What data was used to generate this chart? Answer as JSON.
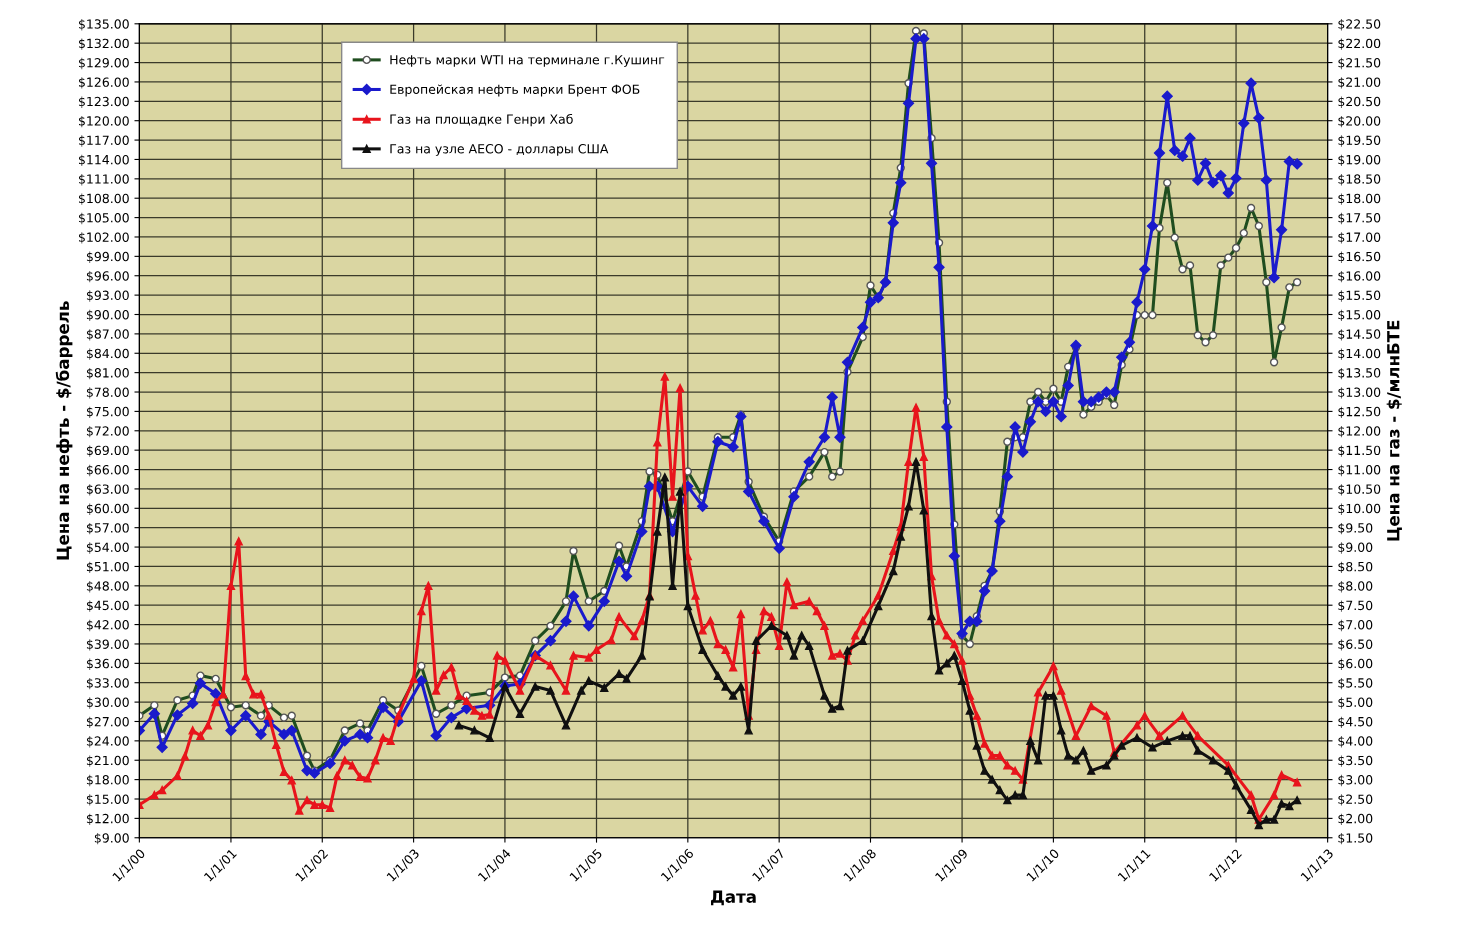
{
  "chart_data": {
    "type": "line",
    "xlabel": "Дата",
    "ylabel": "Цена на нефть - $/баррель",
    "y2label": "Цена на газ - $/млнБТЕ",
    "grid": true,
    "legend": "top left",
    "line_style": "solid",
    "xlim": [
      "2000-01-01",
      "2013-01-01"
    ],
    "xticks": [
      {
        "value": "2000-01-01",
        "label": "1/1/00"
      },
      {
        "value": "2001-01-01",
        "label": "1/1/01"
      },
      {
        "value": "2002-01-01",
        "label": "1/1/02"
      },
      {
        "value": "2003-01-01",
        "label": "1/1/03"
      },
      {
        "value": "2004-01-01",
        "label": "1/1/04"
      },
      {
        "value": "2005-01-01",
        "label": "1/1/05"
      },
      {
        "value": "2006-01-01",
        "label": "1/1/06"
      },
      {
        "value": "2007-01-01",
        "label": "1/1/07"
      },
      {
        "value": "2008-01-01",
        "label": "1/1/08"
      },
      {
        "value": "2009-01-01",
        "label": "1/1/09"
      },
      {
        "value": "2010-01-01",
        "label": "1/1/10"
      },
      {
        "value": "2011-01-01",
        "label": "1/1/11"
      },
      {
        "value": "2012-01-01",
        "label": "1/1/12"
      },
      {
        "value": "2013-01-01",
        "label": "1/1/13"
      }
    ],
    "ylim": [
      9,
      135
    ],
    "yticks": [
      {
        "value": 9,
        "label": "$9.00"
      },
      {
        "value": 12,
        "label": "$12.00"
      },
      {
        "value": 15,
        "label": "$15.00"
      },
      {
        "value": 18,
        "label": "$18.00"
      },
      {
        "value": 21,
        "label": "$21.00"
      },
      {
        "value": 24,
        "label": "$24.00"
      },
      {
        "value": 27,
        "label": "$27.00"
      },
      {
        "value": 30,
        "label": "$30.00"
      },
      {
        "value": 33,
        "label": "$33.00"
      },
      {
        "value": 36,
        "label": "$36.00"
      },
      {
        "value": 39,
        "label": "$39.00"
      },
      {
        "value": 42,
        "label": "$42.00"
      },
      {
        "value": 45,
        "label": "$45.00"
      },
      {
        "value": 48,
        "label": "$48.00"
      },
      {
        "value": 51,
        "label": "$51.00"
      },
      {
        "value": 54,
        "label": "$54.00"
      },
      {
        "value": 57,
        "label": "$57.00"
      },
      {
        "value": 60,
        "label": "$60.00"
      },
      {
        "value": 63,
        "label": "$63.00"
      },
      {
        "value": 66,
        "label": "$66.00"
      },
      {
        "value": 69,
        "label": "$69.00"
      },
      {
        "value": 72,
        "label": "$72.00"
      },
      {
        "value": 75,
        "label": "$75.00"
      },
      {
        "value": 78,
        "label": "$78.00"
      },
      {
        "value": 81,
        "label": "$81.00"
      },
      {
        "value": 84,
        "label": "$84.00"
      },
      {
        "value": 87,
        "label": "$87.00"
      },
      {
        "value": 90,
        "label": "$90.00"
      },
      {
        "value": 93,
        "label": "$93.00"
      },
      {
        "value": 96,
        "label": "$96.00"
      },
      {
        "value": 99,
        "label": "$99.00"
      },
      {
        "value": 102,
        "label": "$102.00"
      },
      {
        "value": 105,
        "label": "$105.00"
      },
      {
        "value": 108,
        "label": "$108.00"
      },
      {
        "value": 111,
        "label": "$111.00"
      },
      {
        "value": 114,
        "label": "$114.00"
      },
      {
        "value": 117,
        "label": "$117.00"
      },
      {
        "value": 120,
        "label": "$120.00"
      },
      {
        "value": 123,
        "label": "$123.00"
      },
      {
        "value": 126,
        "label": "$126.00"
      },
      {
        "value": 129,
        "label": "$129.00"
      },
      {
        "value": 132,
        "label": "$132.00"
      },
      {
        "value": 135,
        "label": "$135.00"
      }
    ],
    "y2lim": [
      1.5,
      22.5
    ],
    "y2ticks": [
      {
        "value": 1.5,
        "label": "$1.50"
      },
      {
        "value": 2,
        "label": "$2.00"
      },
      {
        "value": 2.5,
        "label": "$2.50"
      },
      {
        "value": 3,
        "label": "$3.00"
      },
      {
        "value": 3.5,
        "label": "$3.50"
      },
      {
        "value": 4,
        "label": "$4.00"
      },
      {
        "value": 4.5,
        "label": "$4.50"
      },
      {
        "value": 5,
        "label": "$5.00"
      },
      {
        "value": 5.5,
        "label": "$5.50"
      },
      {
        "value": 6,
        "label": "$6.00"
      },
      {
        "value": 6.5,
        "label": "$6.50"
      },
      {
        "value": 7,
        "label": "$7.00"
      },
      {
        "value": 7.5,
        "label": "$7.50"
      },
      {
        "value": 8,
        "label": "$8.00"
      },
      {
        "value": 8.5,
        "label": "$8.50"
      },
      {
        "value": 9,
        "label": "$9.00"
      },
      {
        "value": 9.5,
        "label": "$9.50"
      },
      {
        "value": 10,
        "label": "$10.00"
      },
      {
        "value": 10.5,
        "label": "$10.50"
      },
      {
        "value": 11,
        "label": "$11.00"
      },
      {
        "value": 11.5,
        "label": "$11.50"
      },
      {
        "value": 12,
        "label": "$12.00"
      },
      {
        "value": 12.5,
        "label": "$12.50"
      },
      {
        "value": 13,
        "label": "$13.00"
      },
      {
        "value": 13.5,
        "label": "$13.50"
      },
      {
        "value": 14,
        "label": "$14.00"
      },
      {
        "value": 14.5,
        "label": "$14.50"
      },
      {
        "value": 15,
        "label": "$15.00"
      },
      {
        "value": 15.5,
        "label": "$15.50"
      },
      {
        "value": 16,
        "label": "$16.00"
      },
      {
        "value": 16.5,
        "label": "$16.50"
      },
      {
        "value": 17,
        "label": "$17.00"
      },
      {
        "value": 17.5,
        "label": "$17.50"
      },
      {
        "value": 18,
        "label": "$18.00"
      },
      {
        "value": 18.5,
        "label": "$18.50"
      },
      {
        "value": 19,
        "label": "$19.00"
      },
      {
        "value": 19.5,
        "label": "$19.50"
      },
      {
        "value": 20,
        "label": "$20.00"
      },
      {
        "value": 20.5,
        "label": "$20.50"
      },
      {
        "value": 21,
        "label": "$21.00"
      },
      {
        "value": 21.5,
        "label": "$21.50"
      },
      {
        "value": 22,
        "label": "$22.00"
      },
      {
        "value": 22.5,
        "label": "$22.50"
      }
    ],
    "series": [
      {
        "name": "Нефть марки WTI на терминале г.Кушинг",
        "color": "#1f4d1f",
        "marker": "circle",
        "x": [
          "2000-01",
          "2000-03",
          "2000-04",
          "2000-06",
          "2000-08",
          "2000-09",
          "2000-11",
          "2001-01",
          "2001-03",
          "2001-05",
          "2001-06",
          "2001-08",
          "2001-09",
          "2001-11",
          "2001-12",
          "2002-02",
          "2002-04",
          "2002-06",
          "2002-07",
          "2002-09",
          "2002-11",
          "2003-02",
          "2003-04",
          "2003-06",
          "2003-08",
          "2003-11",
          "2004-01",
          "2004-03",
          "2004-05",
          "2004-07",
          "2004-09",
          "2004-10",
          "2004-12",
          "2005-02",
          "2005-04",
          "2005-05",
          "2005-07",
          "2005-08",
          "2005-09",
          "2005-11",
          "2006-01",
          "2006-03",
          "2006-05",
          "2006-07",
          "2006-08",
          "2006-09",
          "2006-11",
          "2007-01",
          "2007-03",
          "2007-05",
          "2007-07",
          "2007-08",
          "2007-09",
          "2007-10",
          "2007-12",
          "2008-01",
          "2008-02",
          "2008-03",
          "2008-04",
          "2008-05",
          "2008-06",
          "2008-07",
          "2008-08",
          "2008-09",
          "2008-10",
          "2008-11",
          "2008-12",
          "2009-01",
          "2009-02",
          "2009-03",
          "2009-04",
          "2009-05",
          "2009-06",
          "2009-07",
          "2009-08",
          "2009-09",
          "2009-10",
          "2009-11",
          "2009-12",
          "2010-01",
          "2010-02",
          "2010-03",
          "2010-04",
          "2010-05",
          "2010-06",
          "2010-07",
          "2010-08",
          "2010-09",
          "2010-10",
          "2010-11",
          "2010-12",
          "2011-01",
          "2011-02",
          "2011-03",
          "2011-04",
          "2011-05",
          "2011-06",
          "2011-07",
          "2011-08",
          "2011-09",
          "2011-10",
          "2011-11",
          "2011-12",
          "2012-01",
          "2012-02",
          "2012-03",
          "2012-04",
          "2012-05",
          "2012-06",
          "2012-07",
          "2012-08",
          "2012-09"
        ],
        "values": [
          27.9,
          29.5,
          24.8,
          30.3,
          31,
          34.1,
          33.6,
          29.2,
          29.5,
          27.9,
          29.5,
          27.6,
          27.9,
          21.7,
          19.4,
          21,
          25.6,
          26.7,
          25.6,
          30.3,
          28.7,
          35.6,
          28.2,
          29.5,
          31,
          31.5,
          33.8,
          34.1,
          39.5,
          41.8,
          45.6,
          53.4,
          45.6,
          47.2,
          54.2,
          51,
          58,
          65.7,
          65.2,
          58,
          65.7,
          61.8,
          71,
          71,
          74.5,
          64.1,
          58.7,
          54.9,
          62.6,
          64.9,
          68.7,
          64.9,
          65.7,
          81.1,
          86.5,
          94.5,
          92.6,
          95,
          105.7,
          112.7,
          125.8,
          133.9,
          133.5,
          117.3,
          101.1,
          76.5,
          57.5,
          40.3,
          39,
          43.3,
          48,
          50.3,
          59.5,
          70.3,
          71,
          71,
          76.5,
          78,
          76.5,
          78.5,
          76.5,
          81.9,
          84.9,
          74.5,
          75.7,
          76.5,
          77.5,
          76,
          82.2,
          84.6,
          89.9,
          89.9,
          89.9,
          103.4,
          110.4,
          101.9,
          97,
          97.6,
          86.8,
          85.7,
          86.8,
          97.6,
          98.8,
          100.3,
          102.6,
          106.5,
          103.7,
          95,
          82.6,
          88,
          94.2,
          95
        ]
      },
      {
        "name": "Европейская нефть марки Брент ФОБ",
        "color": "#1a1acc",
        "marker": "diamond",
        "x": [
          "2000-01",
          "2000-03",
          "2000-04",
          "2000-06",
          "2000-08",
          "2000-09",
          "2000-11",
          "2001-01",
          "2001-03",
          "2001-05",
          "2001-06",
          "2001-08",
          "2001-09",
          "2001-11",
          "2001-12",
          "2002-02",
          "2002-04",
          "2002-06",
          "2002-07",
          "2002-09",
          "2002-11",
          "2003-02",
          "2003-04",
          "2003-06",
          "2003-08",
          "2003-11",
          "2004-01",
          "2004-03",
          "2004-05",
          "2004-07",
          "2004-09",
          "2004-10",
          "2004-12",
          "2005-02",
          "2005-04",
          "2005-05",
          "2005-07",
          "2005-08",
          "2005-09",
          "2005-11",
          "2006-01",
          "2006-03",
          "2006-05",
          "2006-07",
          "2006-08",
          "2006-09",
          "2006-11",
          "2007-01",
          "2007-03",
          "2007-05",
          "2007-07",
          "2007-08",
          "2007-09",
          "2007-10",
          "2007-12",
          "2008-01",
          "2008-02",
          "2008-03",
          "2008-04",
          "2008-05",
          "2008-06",
          "2008-07",
          "2008-08",
          "2008-09",
          "2008-10",
          "2008-11",
          "2008-12",
          "2009-01",
          "2009-02",
          "2009-03",
          "2009-04",
          "2009-05",
          "2009-06",
          "2009-07",
          "2009-08",
          "2009-09",
          "2009-10",
          "2009-11",
          "2009-12",
          "2010-01",
          "2010-02",
          "2010-03",
          "2010-04",
          "2010-05",
          "2010-06",
          "2010-07",
          "2010-08",
          "2010-09",
          "2010-10",
          "2010-11",
          "2010-12",
          "2011-01",
          "2011-02",
          "2011-03",
          "2011-04",
          "2011-05",
          "2011-06",
          "2011-07",
          "2011-08",
          "2011-09",
          "2011-10",
          "2011-11",
          "2011-12",
          "2012-01",
          "2012-02",
          "2012-03",
          "2012-04",
          "2012-05",
          "2012-06",
          "2012-07",
          "2012-08",
          "2012-09"
        ],
        "values": [
          25.6,
          28.2,
          23,
          28,
          29.8,
          32.9,
          31.3,
          25.6,
          27.9,
          25,
          27,
          25,
          25.6,
          19.4,
          19,
          20.5,
          24,
          25,
          24.5,
          29.2,
          27,
          33.3,
          24.8,
          27.6,
          29,
          29.5,
          32.5,
          32.8,
          37.2,
          39.5,
          42.5,
          46.4,
          41.8,
          45.6,
          51.8,
          49.5,
          56.4,
          63.4,
          63.4,
          56.4,
          63.4,
          60.3,
          70.3,
          69.5,
          74.2,
          62.6,
          58,
          53.8,
          61.8,
          67.2,
          71,
          77.2,
          71,
          82.6,
          88,
          91.9,
          92.6,
          95,
          104.2,
          110.4,
          122.7,
          132.7,
          132.7,
          113.4,
          97.3,
          72.6,
          52.6,
          40.6,
          42.5,
          42.5,
          47.2,
          50.3,
          58,
          64.9,
          72.6,
          68.7,
          73.4,
          76.5,
          75,
          76.5,
          74.2,
          79,
          85.2,
          76.5,
          76.5,
          77.2,
          78,
          78,
          83.4,
          85.7,
          91.9,
          97,
          103.7,
          115,
          123.8,
          115.4,
          114.5,
          117.3,
          110.8,
          113.4,
          110.4,
          111.5,
          108.8,
          111.1,
          119.6,
          125.8,
          120.4,
          110.8,
          95.7,
          103.1,
          113.7,
          113.3
        ]
      },
      {
        "name": "Газ на площадке Генри Хаб",
        "color": "#e8141c",
        "marker": "triangle",
        "axis": "y2",
        "x": [
          "2000-01",
          "2000-03",
          "2000-04",
          "2000-06",
          "2000-07",
          "2000-08",
          "2000-09",
          "2000-10",
          "2000-11",
          "2000-12",
          "2001-01",
          "2001-02",
          "2001-03",
          "2001-04",
          "2001-05",
          "2001-06",
          "2001-07",
          "2001-08",
          "2001-09",
          "2001-10",
          "2001-11",
          "2001-12",
          "2002-01",
          "2002-02",
          "2002-03",
          "2002-04",
          "2002-05",
          "2002-06",
          "2002-07",
          "2002-08",
          "2002-09",
          "2002-10",
          "2002-11",
          "2003-01",
          "2003-02",
          "2003-03",
          "2003-04",
          "2003-05",
          "2003-06",
          "2003-07",
          "2003-08",
          "2003-09",
          "2003-10",
          "2003-11",
          "2003-12",
          "2004-01",
          "2004-03",
          "2004-05",
          "2004-07",
          "2004-09",
          "2004-10",
          "2004-12",
          "2005-01",
          "2005-03",
          "2005-04",
          "2005-06",
          "2005-07",
          "2005-08",
          "2005-09",
          "2005-10",
          "2005-11",
          "2005-12",
          "2006-01",
          "2006-02",
          "2006-03",
          "2006-04",
          "2006-05",
          "2006-06",
          "2006-07",
          "2006-08",
          "2006-09",
          "2006-10",
          "2006-11",
          "2006-12",
          "2007-01",
          "2007-02",
          "2007-03",
          "2007-05",
          "2007-06",
          "2007-07",
          "2007-08",
          "2007-09",
          "2007-10",
          "2007-11",
          "2007-12",
          "2008-02",
          "2008-04",
          "2008-05",
          "2008-06",
          "2008-07",
          "2008-08",
          "2008-09",
          "2008-10",
          "2008-11",
          "2008-12",
          "2009-01",
          "2009-02",
          "2009-03",
          "2009-04",
          "2009-05",
          "2009-06",
          "2009-07",
          "2009-08",
          "2009-09",
          "2009-11",
          "2010-01",
          "2010-02",
          "2010-04",
          "2010-06",
          "2010-08",
          "2010-09",
          "2010-12",
          "2011-01",
          "2011-03",
          "2011-06",
          "2011-08",
          "2011-12",
          "2012-03",
          "2012-04",
          "2012-06",
          "2012-07",
          "2012-09"
        ],
        "values": [
          2.35,
          2.6,
          2.73,
          3.1,
          3.6,
          4.27,
          4.13,
          4.4,
          5,
          5.2,
          8,
          9.15,
          5.67,
          5.2,
          5.2,
          4.65,
          3.9,
          3.2,
          2.98,
          2.2,
          2.47,
          2.35,
          2.35,
          2.27,
          3.1,
          3.5,
          3.37,
          3.07,
          3.03,
          3.5,
          4.08,
          4,
          4.65,
          5.6,
          7.35,
          8,
          5.3,
          5.7,
          5.9,
          5.17,
          5.03,
          4.78,
          4.65,
          4.68,
          6.2,
          6.07,
          5.3,
          6.2,
          5.95,
          5.3,
          6.2,
          6.15,
          6.35,
          6.6,
          7.2,
          6.7,
          7.1,
          7.75,
          11.7,
          13.4,
          10.3,
          13.1,
          8.77,
          7.75,
          6.85,
          7.1,
          6.5,
          6.35,
          5.9,
          7.27,
          4.65,
          6.35,
          7.35,
          7.2,
          6.45,
          8.1,
          7.5,
          7.6,
          7.35,
          6.97,
          6.2,
          6.25,
          6.07,
          6.72,
          7.1,
          7.75,
          8.9,
          9.53,
          11.2,
          12.6,
          11.33,
          8.25,
          7.1,
          6.72,
          6.5,
          6.07,
          5.17,
          4.65,
          3.93,
          3.62,
          3.62,
          3.37,
          3.23,
          3,
          5.25,
          5.93,
          5.3,
          4.13,
          4.9,
          4.65,
          3.7,
          4.4,
          4.65,
          4.13,
          4.65,
          4.13,
          3.37,
          2.6,
          1.97,
          2.6,
          3.12,
          2.93
        ]
      },
      {
        "name": "Газ на узле AECO - доллары США",
        "color": "#101010",
        "marker": "triangle",
        "axis": "y2",
        "x": [
          "2003-07",
          "2003-09",
          "2003-11",
          "2004-01",
          "2004-03",
          "2004-05",
          "2004-07",
          "2004-09",
          "2004-11",
          "2004-12",
          "2005-02",
          "2005-04",
          "2005-05",
          "2005-07",
          "2005-08",
          "2005-09",
          "2005-10",
          "2005-11",
          "2005-12",
          "2006-01",
          "2006-03",
          "2006-05",
          "2006-06",
          "2006-07",
          "2006-08",
          "2006-09",
          "2006-10",
          "2006-12",
          "2007-02",
          "2007-03",
          "2007-04",
          "2007-05",
          "2007-07",
          "2007-08",
          "2007-09",
          "2007-10",
          "2007-12",
          "2008-02",
          "2008-04",
          "2008-05",
          "2008-06",
          "2008-07",
          "2008-08",
          "2008-09",
          "2008-10",
          "2008-11",
          "2008-12",
          "2009-01",
          "2009-02",
          "2009-03",
          "2009-04",
          "2009-05",
          "2009-06",
          "2009-07",
          "2009-08",
          "2009-09",
          "2009-10",
          "2009-11",
          "2009-12",
          "2010-01",
          "2010-02",
          "2010-03",
          "2010-04",
          "2010-05",
          "2010-06",
          "2010-08",
          "2010-09",
          "2010-10",
          "2010-12",
          "2011-02",
          "2011-04",
          "2011-06",
          "2011-07",
          "2011-08",
          "2011-10",
          "2011-12",
          "2012-01",
          "2012-03",
          "2012-04",
          "2012-05",
          "2012-06",
          "2012-07",
          "2012-08",
          "2012-09"
        ],
        "values": [
          4.4,
          4.27,
          4.08,
          5.4,
          4.7,
          5.4,
          5.3,
          4.4,
          5.3,
          5.55,
          5.37,
          5.73,
          5.6,
          6.2,
          7.73,
          9.4,
          10.8,
          8,
          10.43,
          7.48,
          6.35,
          5.68,
          5.4,
          5.17,
          5.4,
          4.27,
          6.58,
          6.97,
          6.72,
          6.2,
          6.72,
          6.45,
          5.17,
          4.83,
          4.9,
          6.33,
          6.58,
          7.48,
          8.38,
          9.27,
          10.05,
          11.2,
          9.95,
          7.22,
          5.82,
          6,
          6.2,
          5.55,
          4.78,
          3.88,
          3.23,
          3,
          2.73,
          2.47,
          2.6,
          2.6,
          4,
          3.5,
          5.17,
          5.17,
          4.27,
          3.62,
          3.5,
          3.75,
          3.23,
          3.37,
          3.62,
          3.88,
          4.08,
          3.83,
          4,
          4.13,
          4.13,
          3.75,
          3.5,
          3.23,
          2.85,
          2.22,
          1.83,
          1.97,
          1.97,
          2.38,
          2.32,
          2.47
        ]
      }
    ]
  }
}
